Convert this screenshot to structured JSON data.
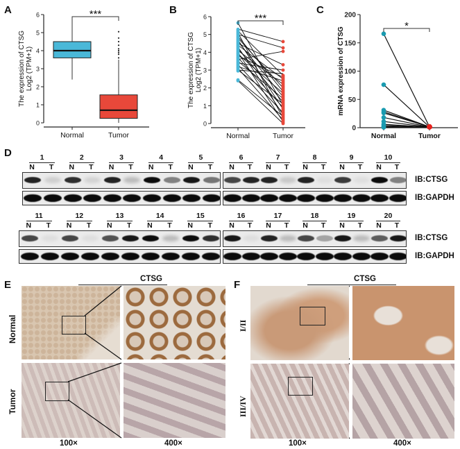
{
  "panels": {
    "A": {
      "letter": "A"
    },
    "B": {
      "letter": "B"
    },
    "C": {
      "letter": "C"
    },
    "D": {
      "letter": "D"
    },
    "E": {
      "letter": "E"
    },
    "F": {
      "letter": "F"
    }
  },
  "chart_data": [
    {
      "panel": "A",
      "type": "box",
      "title": "",
      "xlabel": "",
      "ylabel": "The expression of CTSG Log2 (TPM+1)",
      "ylabel_line1": "The expression of CTSG",
      "ylabel_line2": "Log2 (TPM+1)",
      "categories": [
        "Normal",
        "Tumor"
      ],
      "yticks": [
        0,
        1,
        2,
        3,
        4,
        5,
        6
      ],
      "ylim": [
        0,
        6
      ],
      "boxes": [
        {
          "name": "Normal",
          "color": "#4ab8d8",
          "min": 2.4,
          "q1": 3.6,
          "median": 4.0,
          "q3": 4.5,
          "max": 5.7
        },
        {
          "name": "Tumor",
          "color": "#e8483a",
          "min": 0.0,
          "q1": 0.25,
          "median": 0.7,
          "q3": 1.55,
          "max": 3.5,
          "outliers": [
            3.6,
            3.8,
            3.9,
            4.0,
            4.1,
            4.3,
            4.5,
            4.7,
            5.05
          ]
        }
      ],
      "significance": "***"
    },
    {
      "panel": "B",
      "type": "paired-line",
      "ylabel": "The expression of CTSG Log2 (TPM+1)",
      "ylabel_line1": "The expression of CTSG",
      "ylabel_line2": "Log2 (TPM+1)",
      "categories": [
        "Normal",
        "Tumor"
      ],
      "yticks": [
        0,
        1,
        2,
        3,
        4,
        5,
        6
      ],
      "ylim": [
        0,
        6
      ],
      "series": [
        {
          "name": "Normal",
          "color": "#4ab8d8"
        },
        {
          "name": "Tumor",
          "color": "#e8483a"
        }
      ],
      "pairs": [
        [
          5.65,
          1.0
        ],
        [
          5.3,
          4.6
        ],
        [
          5.2,
          2.7
        ],
        [
          5.1,
          0.3
        ],
        [
          5.0,
          4.25
        ],
        [
          4.9,
          1.8
        ],
        [
          4.8,
          2.0
        ],
        [
          4.7,
          0.8
        ],
        [
          4.6,
          1.5
        ],
        [
          4.5,
          3.3
        ],
        [
          4.4,
          2.5
        ],
        [
          4.3,
          0.5
        ],
        [
          4.2,
          1.2
        ],
        [
          4.1,
          2.2
        ],
        [
          4.0,
          0.1
        ],
        [
          3.9,
          1.7
        ],
        [
          3.8,
          2.6
        ],
        [
          3.7,
          0.9
        ],
        [
          3.6,
          4.05
        ],
        [
          3.5,
          1.4
        ],
        [
          3.4,
          3.0
        ],
        [
          3.3,
          0.6
        ],
        [
          3.2,
          2.4
        ],
        [
          3.1,
          0.2
        ],
        [
          3.0,
          1.1
        ],
        [
          3.0,
          2.8
        ],
        [
          2.45,
          0.4
        ],
        [
          2.4,
          0.0
        ]
      ],
      "significance": "***"
    },
    {
      "panel": "C",
      "type": "paired-line",
      "ylabel": "mRNA expression of CTSG",
      "categories": [
        "Normal",
        "Tumor"
      ],
      "yticks": [
        0,
        50,
        100,
        150,
        200
      ],
      "ylim": [
        0,
        200
      ],
      "series": [
        {
          "name": "Normal",
          "color": "#1a9bb0"
        },
        {
          "name": "Tumor",
          "color": "#e8221e"
        }
      ],
      "pairs": [
        [
          166,
          1.5
        ],
        [
          76,
          1.5
        ],
        [
          31,
          1.5
        ],
        [
          28,
          1.5
        ],
        [
          26,
          1.5
        ],
        [
          18,
          1.0
        ],
        [
          11,
          1.0
        ],
        [
          6,
          1.0
        ],
        [
          4,
          0.5
        ],
        [
          2,
          0.5
        ],
        [
          1,
          0.5
        ],
        [
          0.5,
          0.5
        ]
      ],
      "significance": "*"
    }
  ],
  "western_blot": {
    "panel": "D",
    "row1_pairs": [
      "1",
      "2",
      "3",
      "4",
      "5",
      "6",
      "7",
      "8",
      "9",
      "10"
    ],
    "row2_pairs": [
      "11",
      "12",
      "13",
      "14",
      "15",
      "16",
      "17",
      "18",
      "19",
      "20"
    ],
    "lane_labels": {
      "n": "N",
      "t": "T"
    },
    "blots": {
      "top": "IB:CTSG",
      "bottom": "IB:GAPDH"
    },
    "row1_ctsg_intensity": [
      0.85,
      0.12,
      0.8,
      0.1,
      0.85,
      0.2,
      0.95,
      0.45,
      0.9,
      0.5,
      0.7,
      0.85,
      0.85,
      0.15,
      0.85,
      0.05,
      0.75,
      0.05,
      0.95,
      0.45
    ],
    "row2_ctsg_intensity": [
      0.7,
      0.05,
      0.7,
      0.05,
      0.65,
      0.9,
      0.95,
      0.2,
      0.95,
      0.8,
      0.9,
      0.05,
      0.85,
      0.2,
      0.7,
      0.3,
      0.9,
      0.2,
      0.6,
      0.9
    ]
  },
  "ihc_E": {
    "title": "CTSG",
    "rows": [
      "Normal",
      "Tumor"
    ],
    "magnifications": [
      "100×",
      "400×"
    ]
  },
  "ihc_F": {
    "title": "CTSG",
    "rows": [
      "I/II",
      "III/IV"
    ],
    "magnifications": [
      "100×",
      "400×"
    ]
  }
}
